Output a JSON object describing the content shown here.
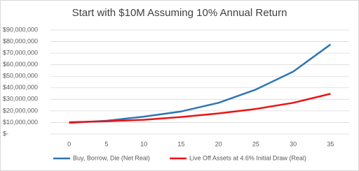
{
  "chart_data": {
    "type": "line",
    "title": "Start with $10M Assuming 10% Annual Return",
    "x": [
      0,
      5,
      10,
      15,
      20,
      25,
      30,
      35
    ],
    "xlim": [
      -2.5,
      37.5
    ],
    "xticks": [
      0,
      5,
      10,
      15,
      20,
      25,
      30,
      35
    ],
    "series": [
      {
        "name": "Buy, Borrow, Die (Net Real)",
        "color": "#2e75b6",
        "values": [
          9600000,
          11500000,
          15000000,
          19500000,
          27000000,
          38500000,
          54000000,
          77500000
        ]
      },
      {
        "name": "Live Off Assets at 4.6% Initial Draw (Real)",
        "color": "#ee1111",
        "values": [
          10200000,
          11000000,
          12300000,
          14700000,
          17800000,
          21700000,
          27000000,
          34800000
        ]
      }
    ],
    "ylim": [
      0,
      90000000
    ],
    "yticks": [
      {
        "value": 0,
        "label": "$-"
      },
      {
        "value": 10000000,
        "label": "$10,000,000"
      },
      {
        "value": 20000000,
        "label": "$20,000,000"
      },
      {
        "value": 30000000,
        "label": "$30,000,000"
      },
      {
        "value": 40000000,
        "label": "$40,000,000"
      },
      {
        "value": 50000000,
        "label": "$50,000,000"
      },
      {
        "value": 60000000,
        "label": "$60,000,000"
      },
      {
        "value": 70000000,
        "label": "$70,000,000"
      },
      {
        "value": 80000000,
        "label": "$80,000,000"
      },
      {
        "value": 90000000,
        "label": "$90,000,000"
      }
    ],
    "grid": true,
    "legend": "bottom"
  }
}
